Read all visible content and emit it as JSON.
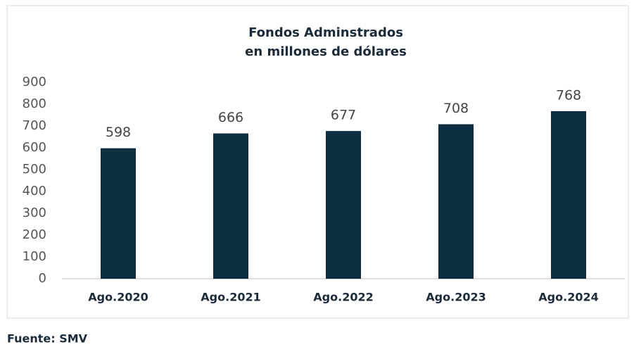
{
  "chart_data": {
    "type": "bar",
    "title": "Fondos Adminstrados",
    "subtitle": "en millones de dólares",
    "categories": [
      "Ago.2020",
      "Ago.2021",
      "Ago.2022",
      "Ago.2023",
      "Ago.2024"
    ],
    "values": [
      598,
      666,
      677,
      708,
      768
    ],
    "color": "#0d2e40",
    "ylim": [
      0,
      900
    ],
    "yticks": [
      0,
      100,
      200,
      300,
      400,
      500,
      600,
      700,
      800,
      900
    ],
    "grid": false,
    "source": "Fuente: SMV"
  }
}
